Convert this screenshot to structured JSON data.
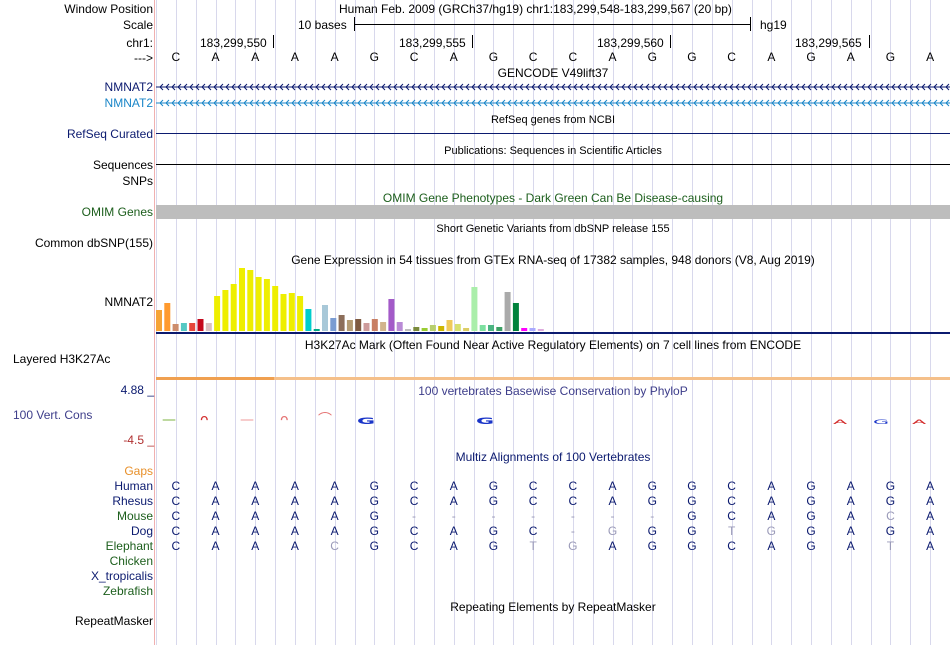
{
  "colors": {
    "navy": "#0b1a6f",
    "lightblue": "#1a86c8",
    "darkgreen": "#1c5e1c",
    "orange": "#e8902a",
    "gray_bar": "#bdbdbd",
    "gridline": "#d8d8ec",
    "red_divider": "#f0b0b0",
    "h3k27_band": "#f5c08a"
  },
  "header": {
    "window_position_label": "Window Position",
    "window_position_value": "Human Feb. 2009 (GRCh37/hg19)   chr1:183,299,548-183,299,567 (20 bp)",
    "scale_label": "Scale",
    "scale_value": "10 bases",
    "scale_assembly": "hg19",
    "chrom_label": "chr1:",
    "arrow_label": "--->",
    "positions": [
      "183,299,550",
      "183,299,555",
      "183,299,560",
      "183,299,565"
    ]
  },
  "reference_bases": [
    "C",
    "A",
    "A",
    "A",
    "A",
    "G",
    "C",
    "A",
    "G",
    "C",
    "C",
    "A",
    "G",
    "G",
    "C",
    "A",
    "G",
    "A",
    "G",
    "A"
  ],
  "tracks": {
    "gencode": {
      "title": "GENCODE V49lift37",
      "rows": [
        {
          "name": "NMNAT2",
          "strand_icon": "<"
        },
        {
          "name": "NMNAT2",
          "strand_icon": "<"
        }
      ]
    },
    "refseq": {
      "title": "RefSeq genes from NCBI",
      "label": "RefSeq Curated"
    },
    "publications": {
      "title": "Publications: Sequences in Scientific Articles",
      "label": "Sequences"
    },
    "snps": {
      "label": "SNPs"
    },
    "omim": {
      "title": "OMIM Gene Phenotypes - Dark Green Can Be Disease-causing",
      "label": "OMIM Genes"
    },
    "dbsnp": {
      "title": "Short Genetic Variants from dbSNP release 155",
      "label": "Common dbSNP(155)"
    },
    "gtex": {
      "title": "Gene Expression in 54 tissues from GTEx RNA-seq of 17382 samples, 948 donors (V8, Aug 2019)",
      "label": "NMNAT2"
    },
    "h3k27ac": {
      "title": "H3K27Ac Mark (Often Found Near Active Regulatory Elements) on 7 cell lines from ENCODE",
      "label": "Layered H3K27Ac"
    },
    "phylop": {
      "title": "100 vertebrates Basewise Conservation by PhyloP",
      "label": "100 Vert. Cons",
      "max_label": "4.88 _",
      "min_label": "-4.5 _"
    },
    "multiz": {
      "title": "Multiz Alignments of 100 Vertebrates",
      "gaps_label": "Gaps"
    },
    "repeatmasker": {
      "title": "Repeating Elements by RepeatMasker",
      "label": "RepeatMasker"
    }
  },
  "species": [
    {
      "name": "Human",
      "color": "#0b1a6f",
      "bases": [
        "C",
        "A",
        "A",
        "A",
        "A",
        "G",
        "C",
        "A",
        "G",
        "C",
        "C",
        "A",
        "G",
        "G",
        "C",
        "A",
        "G",
        "A",
        "G",
        "A"
      ],
      "dim": []
    },
    {
      "name": "Rhesus",
      "color": "#0b1a6f",
      "bases": [
        "C",
        "A",
        "A",
        "A",
        "A",
        "G",
        "C",
        "A",
        "G",
        "C",
        "C",
        "A",
        "G",
        "G",
        "C",
        "A",
        "G",
        "A",
        "G",
        "A"
      ],
      "dim": []
    },
    {
      "name": "Mouse",
      "color": "#1c5e1c",
      "bases": [
        "C",
        "A",
        "A",
        "A",
        "A",
        "G",
        "-",
        "-",
        "-",
        "-",
        "-",
        "-",
        "-",
        "G",
        "C",
        "A",
        "G",
        "A",
        "C",
        "A"
      ],
      "dim": [
        6,
        7,
        8,
        9,
        10,
        11,
        12,
        18
      ]
    },
    {
      "name": "Dog",
      "color": "#0b1a6f",
      "bases": [
        "C",
        "A",
        "A",
        "A",
        "A",
        "G",
        "C",
        "A",
        "G",
        "C",
        "-",
        "G",
        "G",
        "G",
        "T",
        "G",
        "G",
        "A",
        "G",
        "A"
      ],
      "dim": [
        10,
        11,
        14,
        15
      ]
    },
    {
      "name": "Elephant",
      "color": "#1c5e1c",
      "bases": [
        "C",
        "A",
        "A",
        "A",
        "C",
        "G",
        "C",
        "A",
        "G",
        "T",
        "G",
        "A",
        "G",
        "G",
        "C",
        "A",
        "G",
        "A",
        "T",
        "A"
      ],
      "dim": [
        4,
        9,
        10,
        18
      ]
    },
    {
      "name": "Chicken",
      "color": "#1c5e1c",
      "bases": [],
      "dim": []
    },
    {
      "name": "X_tropicalis",
      "color": "#0b1a6f",
      "bases": [],
      "dim": []
    },
    {
      "name": "Zebrafish",
      "color": "#1c5e1c",
      "bases": [],
      "dim": []
    }
  ],
  "gtex_bars": [
    {
      "v": 0.34,
      "c": "#f6a336"
    },
    {
      "v": 0.44,
      "c": "#ff9a2e"
    },
    {
      "v": 0.11,
      "c": "#cd8c6b"
    },
    {
      "v": 0.13,
      "c": "#55c8c3"
    },
    {
      "v": 0.13,
      "c": "#e6463c"
    },
    {
      "v": 0.19,
      "c": "#c4081c"
    },
    {
      "v": 0.12,
      "c": "#d9c0c0"
    },
    {
      "v": 0.56,
      "c": "#eeee00"
    },
    {
      "v": 0.65,
      "c": "#eeee00"
    },
    {
      "v": 0.74,
      "c": "#eeee00"
    },
    {
      "v": 1.0,
      "c": "#eeee00"
    },
    {
      "v": 0.97,
      "c": "#eeee00"
    },
    {
      "v": 0.86,
      "c": "#eeee00"
    },
    {
      "v": 0.82,
      "c": "#eeee00"
    },
    {
      "v": 0.72,
      "c": "#eeee00"
    },
    {
      "v": 0.59,
      "c": "#eeee00"
    },
    {
      "v": 0.6,
      "c": "#eeee00"
    },
    {
      "v": 0.56,
      "c": "#eeee00"
    },
    {
      "v": 0.35,
      "c": "#00cdcd"
    },
    {
      "v": 0.03,
      "c": "#00aa88"
    },
    {
      "v": 0.41,
      "c": "#a8c8d8"
    },
    {
      "v": 0.2,
      "c": "#7a9cd2"
    },
    {
      "v": 0.26,
      "c": "#8c6e5a"
    },
    {
      "v": 0.17,
      "c": "#b49b73"
    },
    {
      "v": 0.19,
      "c": "#7e5a41"
    },
    {
      "v": 0.12,
      "c": "#cd9b9b"
    },
    {
      "v": 0.19,
      "c": "#c87f64"
    },
    {
      "v": 0.14,
      "c": "#d2b48c"
    },
    {
      "v": 0.5,
      "c": "#a35ac8"
    },
    {
      "v": 0.14,
      "c": "#b98ad6"
    },
    {
      "v": 0.03,
      "c": "#bebebe"
    },
    {
      "v": 0.06,
      "c": "#7a8a3c"
    },
    {
      "v": 0.04,
      "c": "#99cc33"
    },
    {
      "v": 0.1,
      "c": "#b8cf6e"
    },
    {
      "v": 0.08,
      "c": "#cdb600"
    },
    {
      "v": 0.18,
      "c": "#f0ca5a"
    },
    {
      "v": 0.11,
      "c": "#d8e06e"
    },
    {
      "v": 0.04,
      "c": "#dccd66"
    },
    {
      "v": 0.7,
      "c": "#aaeeaa"
    },
    {
      "v": 0.1,
      "c": "#7de0a0"
    },
    {
      "v": 0.09,
      "c": "#4bb482"
    },
    {
      "v": 0.06,
      "c": "#3ca064"
    },
    {
      "v": 0.62,
      "c": "#aaaaaa"
    },
    {
      "v": 0.45,
      "c": "#00823c"
    },
    {
      "v": 0.05,
      "c": "#ff00ff"
    },
    {
      "v": 0.04,
      "c": "#aaaaff"
    },
    {
      "v": 0.03,
      "c": "#ddaadd"
    }
  ]
}
